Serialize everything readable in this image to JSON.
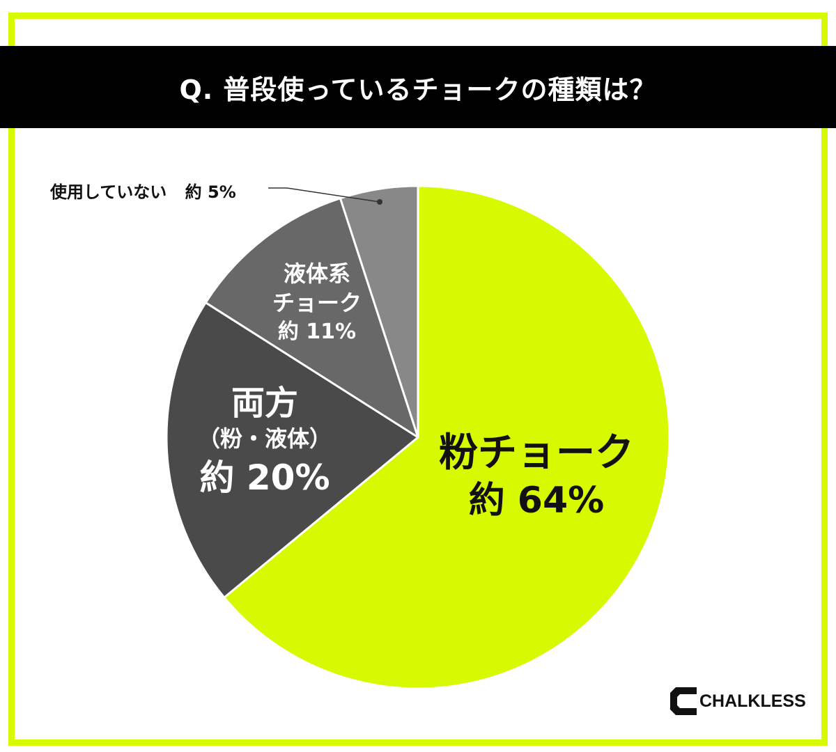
{
  "header": {
    "title": "Q. 普段使っているチョークの種類は？"
  },
  "chart_data": {
    "type": "pie",
    "title": "Q. 普段使っているチョークの種類は？",
    "slices": [
      {
        "name": "粉チョーク",
        "value": 64,
        "label": "約 64%",
        "color": "#d7fa00"
      },
      {
        "name": "両方",
        "sub": "（粉・液体）",
        "value": 20,
        "label": "約 20%",
        "color": "#4a4a4a"
      },
      {
        "name_lines": [
          "液体系",
          "チョーク"
        ],
        "value": 11,
        "label": "約 11%",
        "color": "#686868"
      },
      {
        "name": "使用していない",
        "value": 5,
        "label": "約 5%",
        "color": "#888888"
      }
    ],
    "start": "12 o'clock",
    "direction": "clockwise"
  },
  "brand": {
    "name": "CHALKLESS"
  },
  "colors": {
    "accent": "#d7fa00",
    "title_bg": "#000000"
  }
}
